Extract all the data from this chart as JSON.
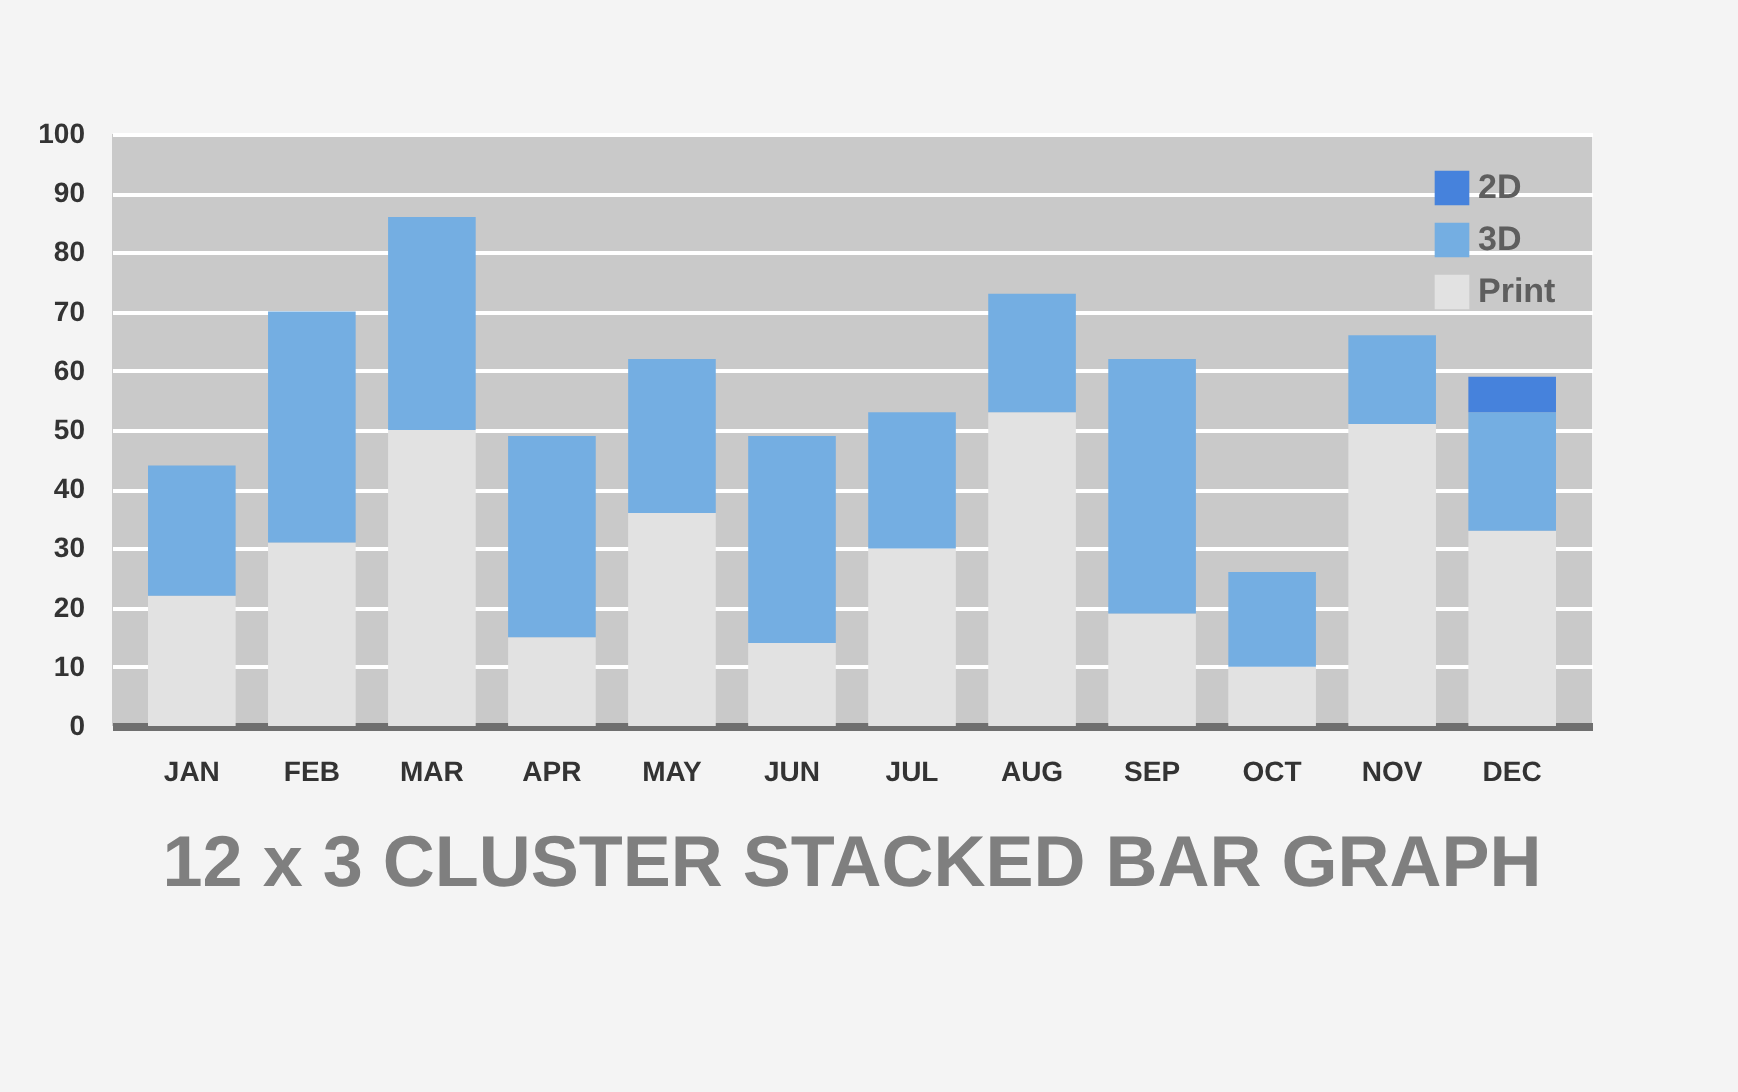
{
  "chart_data": {
    "type": "bar",
    "title": "12 x 3 CLUSTER STACKED BAR GRAPH",
    "categories": [
      "JAN",
      "FEB",
      "MAR",
      "APR",
      "MAY",
      "JUN",
      "JUL",
      "AUG",
      "SEP",
      "OCT",
      "NOV",
      "DEC"
    ],
    "series": [
      {
        "name": "Print",
        "color": "#e2e2e2",
        "values": [
          22,
          31,
          50,
          15,
          36,
          14,
          30,
          53,
          19,
          10,
          51,
          33
        ]
      },
      {
        "name": "3D",
        "color": "#74aee2",
        "values": [
          22,
          39,
          36,
          34,
          26,
          35,
          23,
          20,
          43,
          16,
          15,
          20
        ]
      },
      {
        "name": "2D",
        "color": "#4682dc",
        "values": [
          null,
          null,
          null,
          null,
          null,
          null,
          null,
          null,
          null,
          null,
          null,
          6
        ]
      }
    ],
    "stacked": true,
    "ylim": [
      0,
      100
    ],
    "yticks": [
      0,
      10,
      20,
      30,
      40,
      50,
      60,
      70,
      80,
      90,
      100
    ],
    "grid": "y",
    "legend": "top right"
  }
}
